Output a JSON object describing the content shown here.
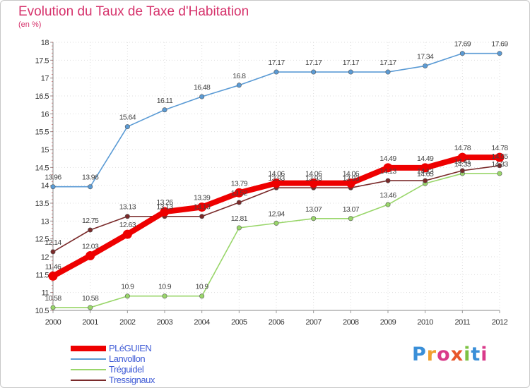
{
  "title": "Evolution du Taux de Taxe d'Habitation",
  "unit": "(en %)",
  "logo": {
    "letters": [
      "P",
      "r",
      "o",
      "x",
      "i",
      "t",
      "i"
    ],
    "colors": [
      "#3a8fd8",
      "#f0a030",
      "#d93a8a",
      "#e8562a",
      "#7cc242",
      "#3a8fd8",
      "#d93a8a"
    ]
  },
  "chart_data": {
    "type": "line",
    "x": [
      "2000",
      "2001",
      "2002",
      "2003",
      "2004",
      "2005",
      "2006",
      "2007",
      "2008",
      "2009",
      "2010",
      "2011",
      "2012"
    ],
    "ylim": [
      10.5,
      18
    ],
    "yticks": [
      "10.5",
      "11",
      "11.5",
      "12",
      "12.5",
      "13",
      "13.5",
      "14",
      "14.5",
      "15",
      "15.5",
      "16",
      "16.5",
      "17",
      "17.5",
      "18"
    ],
    "grid": true,
    "legend_position": "bottom-left",
    "series": [
      {
        "name": "Lanvollon",
        "color": "#5b9bd5",
        "values": [
          13.96,
          13.96,
          15.64,
          16.11,
          16.48,
          16.8,
          17.17,
          17.17,
          17.17,
          17.17,
          17.34,
          17.69,
          17.69
        ],
        "labels": [
          "13.96",
          "13.96",
          "15.64",
          "16.11",
          "16.48",
          "16.8",
          "17.17",
          "17.17",
          "17.17",
          "17.17",
          "17.34",
          "17.69",
          "17.69"
        ]
      },
      {
        "name": "Tréguidel",
        "color": "#99d66a",
        "values": [
          10.58,
          10.58,
          10.9,
          10.9,
          10.9,
          12.81,
          12.94,
          13.07,
          13.07,
          13.46,
          14.05,
          14.33,
          14.33
        ],
        "labels": [
          "10.58",
          "10.58",
          "10.9",
          "10.9",
          "10.9",
          "12.81",
          "12.94",
          "13.07",
          "13.07",
          "13.46",
          "14.05",
          "14.33",
          "14.33"
        ]
      },
      {
        "name": "Tressignaux",
        "color": "#7a2a2a",
        "values": [
          12.14,
          12.75,
          13.13,
          13.13,
          13.13,
          13.52,
          13.93,
          13.93,
          13.93,
          14.13,
          14.13,
          14.41,
          14.55
        ],
        "labels": [
          "12.14",
          "12.75",
          "13.13",
          "13.13",
          "13.13",
          "13.52",
          "13.93",
          "13.93",
          "13.93",
          "14.13",
          "14.13",
          "14.41",
          "14.55"
        ]
      },
      {
        "name": "PLéGUIEN",
        "color": "#ee0000",
        "values": [
          11.46,
          12.03,
          12.63,
          13.26,
          13.39,
          13.79,
          14.06,
          14.06,
          14.06,
          14.49,
          14.49,
          14.78,
          14.78
        ],
        "labels": [
          "11.46",
          "12.03",
          "12.63",
          "13.26",
          "13.39",
          "13.79",
          "14.06",
          "14.06",
          "14.06",
          "14.49",
          "14.49",
          "14.78",
          "14.78"
        ]
      }
    ],
    "legend": [
      "PLéGUIEN",
      "Lanvollon",
      "Tréguidel",
      "Tressignaux"
    ]
  }
}
